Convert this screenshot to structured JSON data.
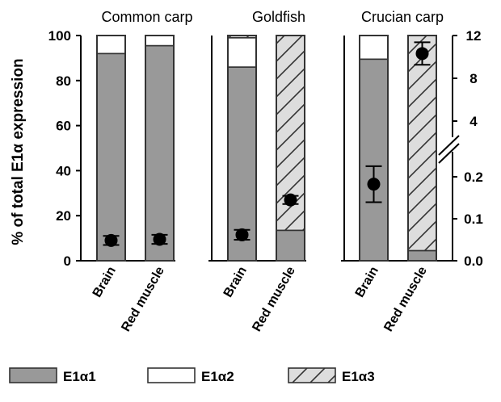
{
  "chart_data": {
    "type": "bar",
    "stacked": true,
    "ylabel": "% of total E1α expression",
    "ylim": [
      0,
      100
    ],
    "yticks": [
      "0",
      "20",
      "40",
      "60",
      "80",
      "100"
    ],
    "y2ticks_top": [
      "4",
      "8",
      "12"
    ],
    "y2ticks_bottom": [
      "0.0",
      "0.1",
      "0.2"
    ],
    "y2_broken": true,
    "legend": [
      {
        "key": "e1a1",
        "label": "E1α1",
        "fill": "#999999"
      },
      {
        "key": "e1a2",
        "label": "E1α2",
        "fill": "#ffffff"
      },
      {
        "key": "e1a3",
        "label": "E1α3",
        "fill": "#dddddd",
        "pattern": "diagonal-hatch"
      }
    ],
    "panels": [
      {
        "title": "Common carp",
        "categories": [
          "Brain",
          "Red muscle"
        ],
        "series": [
          {
            "key": "e1a1",
            "values": [
              92,
              95.5
            ]
          },
          {
            "key": "e1a2",
            "values": [
              8,
              4.5
            ]
          },
          {
            "key": "e1a3",
            "values": [
              0,
              0
            ]
          }
        ],
        "markers": [
          {
            "y": 9,
            "err": 2
          },
          {
            "y": 9.5,
            "err": 2
          }
        ]
      },
      {
        "title": "Goldfish",
        "categories": [
          "Brain",
          "Red muscle"
        ],
        "series": [
          {
            "key": "e1a1",
            "values": [
              86,
              13.5
            ]
          },
          {
            "key": "e1a2",
            "values": [
              13,
              0
            ]
          },
          {
            "key": "e1a3",
            "values": [
              1,
              86.5
            ]
          }
        ],
        "markers": [
          {
            "y": 11.5,
            "err": 2.2
          },
          {
            "y": 27,
            "err": 1.8
          }
        ]
      },
      {
        "title": "Crucian carp",
        "categories": [
          "Brain",
          "Red muscle"
        ],
        "series": [
          {
            "key": "e1a1",
            "values": [
              89.5,
              4.5
            ]
          },
          {
            "key": "e1a2",
            "values": [
              10.5,
              0
            ]
          },
          {
            "key": "e1a3",
            "values": [
              0,
              95.5
            ]
          }
        ],
        "markers": [
          {
            "y": 34,
            "err": 8
          },
          {
            "y": 92,
            "err": 5
          }
        ]
      }
    ]
  },
  "colors": {
    "axis": "#000000",
    "bar_stroke": "#333333",
    "marker": "#000000"
  }
}
